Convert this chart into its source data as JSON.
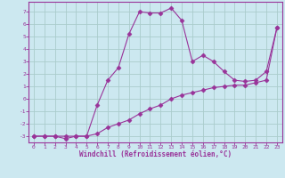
{
  "line1_x": [
    0,
    1,
    2,
    3,
    4,
    5,
    6,
    7,
    8,
    9,
    10,
    11,
    12,
    13,
    14,
    15,
    16,
    17,
    18,
    19,
    20,
    21,
    22,
    23
  ],
  "line1_y": [
    -3,
    -3,
    -3,
    -3.2,
    -3,
    -3,
    -0.5,
    1.5,
    2.5,
    5.2,
    7.0,
    6.9,
    6.9,
    7.3,
    6.3,
    3.0,
    3.5,
    3.0,
    2.2,
    1.5,
    1.4,
    1.5,
    2.2,
    5.7
  ],
  "line2_x": [
    0,
    1,
    2,
    3,
    4,
    5,
    6,
    7,
    8,
    9,
    10,
    11,
    12,
    13,
    14,
    15,
    16,
    17,
    18,
    19,
    20,
    21,
    22,
    23
  ],
  "line2_y": [
    -3,
    -3,
    -3,
    -3,
    -3,
    -3,
    -2.8,
    -2.3,
    -2.0,
    -1.7,
    -1.2,
    -0.8,
    -0.5,
    0.0,
    0.3,
    0.5,
    0.7,
    0.9,
    1.0,
    1.1,
    1.1,
    1.3,
    1.5,
    5.7
  ],
  "color": "#993399",
  "bg_color": "#cce8f0",
  "grid_color": "#aacccc",
  "xlabel": "Windchill (Refroidissement éolien,°C)",
  "ylim": [
    -3.5,
    7.8
  ],
  "xlim": [
    -0.5,
    23.5
  ],
  "yticks": [
    -3,
    -2,
    -1,
    0,
    1,
    2,
    3,
    4,
    5,
    6,
    7
  ],
  "xticks": [
    0,
    1,
    2,
    3,
    4,
    5,
    6,
    7,
    8,
    9,
    10,
    11,
    12,
    13,
    14,
    15,
    16,
    17,
    18,
    19,
    20,
    21,
    22,
    23
  ]
}
